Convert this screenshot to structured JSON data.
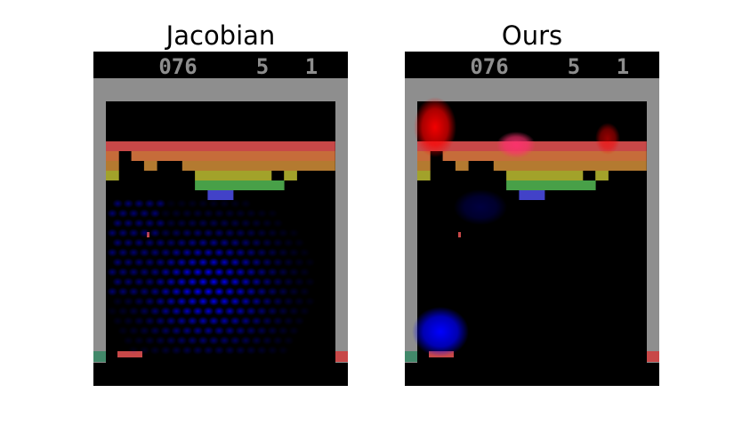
{
  "panels": [
    {
      "id": "jacobian",
      "title": "Jacobian"
    },
    {
      "id": "ours",
      "title": "Ours"
    }
  ],
  "game": {
    "name": "Breakout",
    "score": "076",
    "lives": "5",
    "player": "1",
    "brick_row_colors": [
      "#c84848",
      "#c66c3a",
      "#b47a30",
      "#a2a22a",
      "#48a048",
      "#4242c8"
    ],
    "wall_color": "#8e8e8e",
    "paddle_color": "#c84848",
    "ball_color": "#c84848",
    "hud_color": "#8e8e8e",
    "accent_left_wall": "#42886a",
    "accent_right_wall": "#c84848"
  },
  "saliency": {
    "jacobian_color": "#0000ff",
    "ours_colors": [
      "#ff0000",
      "#ff3070",
      "#0000ff"
    ]
  }
}
